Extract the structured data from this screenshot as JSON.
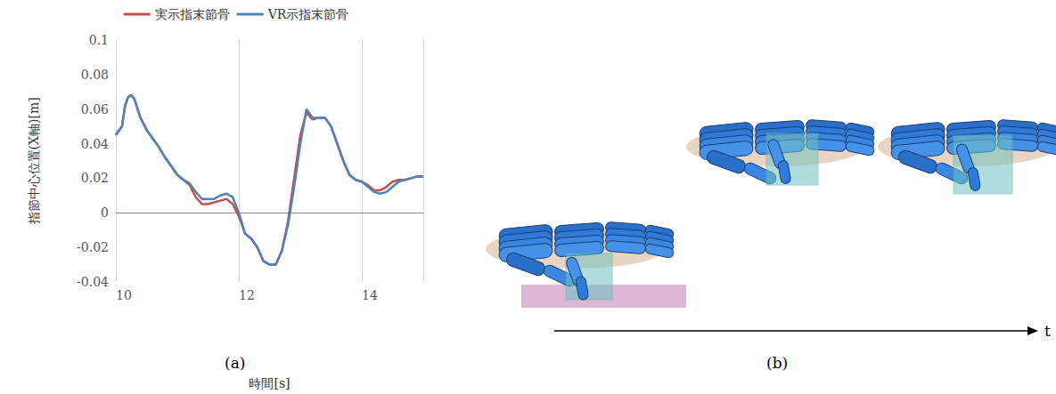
{
  "chart_data": {
    "type": "line",
    "y_label": "指節中心位置(X軸)[m]",
    "x_label": "時間[s]",
    "x": [
      10.0,
      10.1,
      10.15,
      10.2,
      10.25,
      10.3,
      10.4,
      10.5,
      10.6,
      10.7,
      10.8,
      10.9,
      11.0,
      11.1,
      11.2,
      11.3,
      11.4,
      11.5,
      11.6,
      11.7,
      11.8,
      11.9,
      12.0,
      12.1,
      12.2,
      12.3,
      12.4,
      12.5,
      12.6,
      12.7,
      12.8,
      12.9,
      13.0,
      13.1,
      13.2,
      13.3,
      13.4,
      13.5,
      13.6,
      13.7,
      13.8,
      13.9,
      14.0,
      14.1,
      14.2,
      14.3,
      14.4,
      14.5,
      14.6,
      14.7,
      14.8,
      14.9,
      15.0
    ],
    "series": [
      {
        "name": "実示指末節骨",
        "color": "#c0504d",
        "values": [
          0.045,
          0.05,
          0.062,
          0.067,
          0.068,
          0.066,
          0.055,
          0.048,
          0.043,
          0.038,
          0.032,
          0.027,
          0.022,
          0.019,
          0.016,
          0.009,
          0.005,
          0.005,
          0.006,
          0.007,
          0.008,
          0.005,
          -0.002,
          -0.012,
          -0.015,
          -0.02,
          -0.028,
          -0.03,
          -0.03,
          -0.022,
          -0.005,
          0.02,
          0.045,
          0.058,
          0.054,
          0.055,
          0.055,
          0.05,
          0.04,
          0.03,
          0.022,
          0.019,
          0.018,
          0.016,
          0.013,
          0.013,
          0.015,
          0.018,
          0.019,
          0.019,
          0.02,
          0.021,
          0.021
        ]
      },
      {
        "name": "VR示指末節骨",
        "color": "#4f81bd",
        "values": [
          0.045,
          0.05,
          0.062,
          0.067,
          0.068,
          0.066,
          0.055,
          0.048,
          0.043,
          0.038,
          0.032,
          0.027,
          0.022,
          0.019,
          0.017,
          0.012,
          0.008,
          0.008,
          0.008,
          0.01,
          0.011,
          0.009,
          0.0,
          -0.012,
          -0.015,
          -0.02,
          -0.028,
          -0.03,
          -0.03,
          -0.022,
          -0.007,
          0.015,
          0.04,
          0.06,
          0.055,
          0.055,
          0.055,
          0.05,
          0.04,
          0.03,
          0.022,
          0.019,
          0.018,
          0.015,
          0.012,
          0.011,
          0.012,
          0.015,
          0.018,
          0.019,
          0.02,
          0.021,
          0.021
        ]
      }
    ],
    "xlim": [
      10,
      15
    ],
    "xticks": [
      10,
      12,
      14
    ],
    "ylim": [
      -0.04,
      0.1
    ],
    "yticks": [
      -0.04,
      -0.02,
      0,
      0.02,
      0.04,
      0.06,
      0.08,
      0.1
    ],
    "grid": true,
    "legend": "top"
  },
  "figure": {
    "panel_labels": [
      "(a)",
      "(b)"
    ],
    "time_arrow_label": "t"
  }
}
